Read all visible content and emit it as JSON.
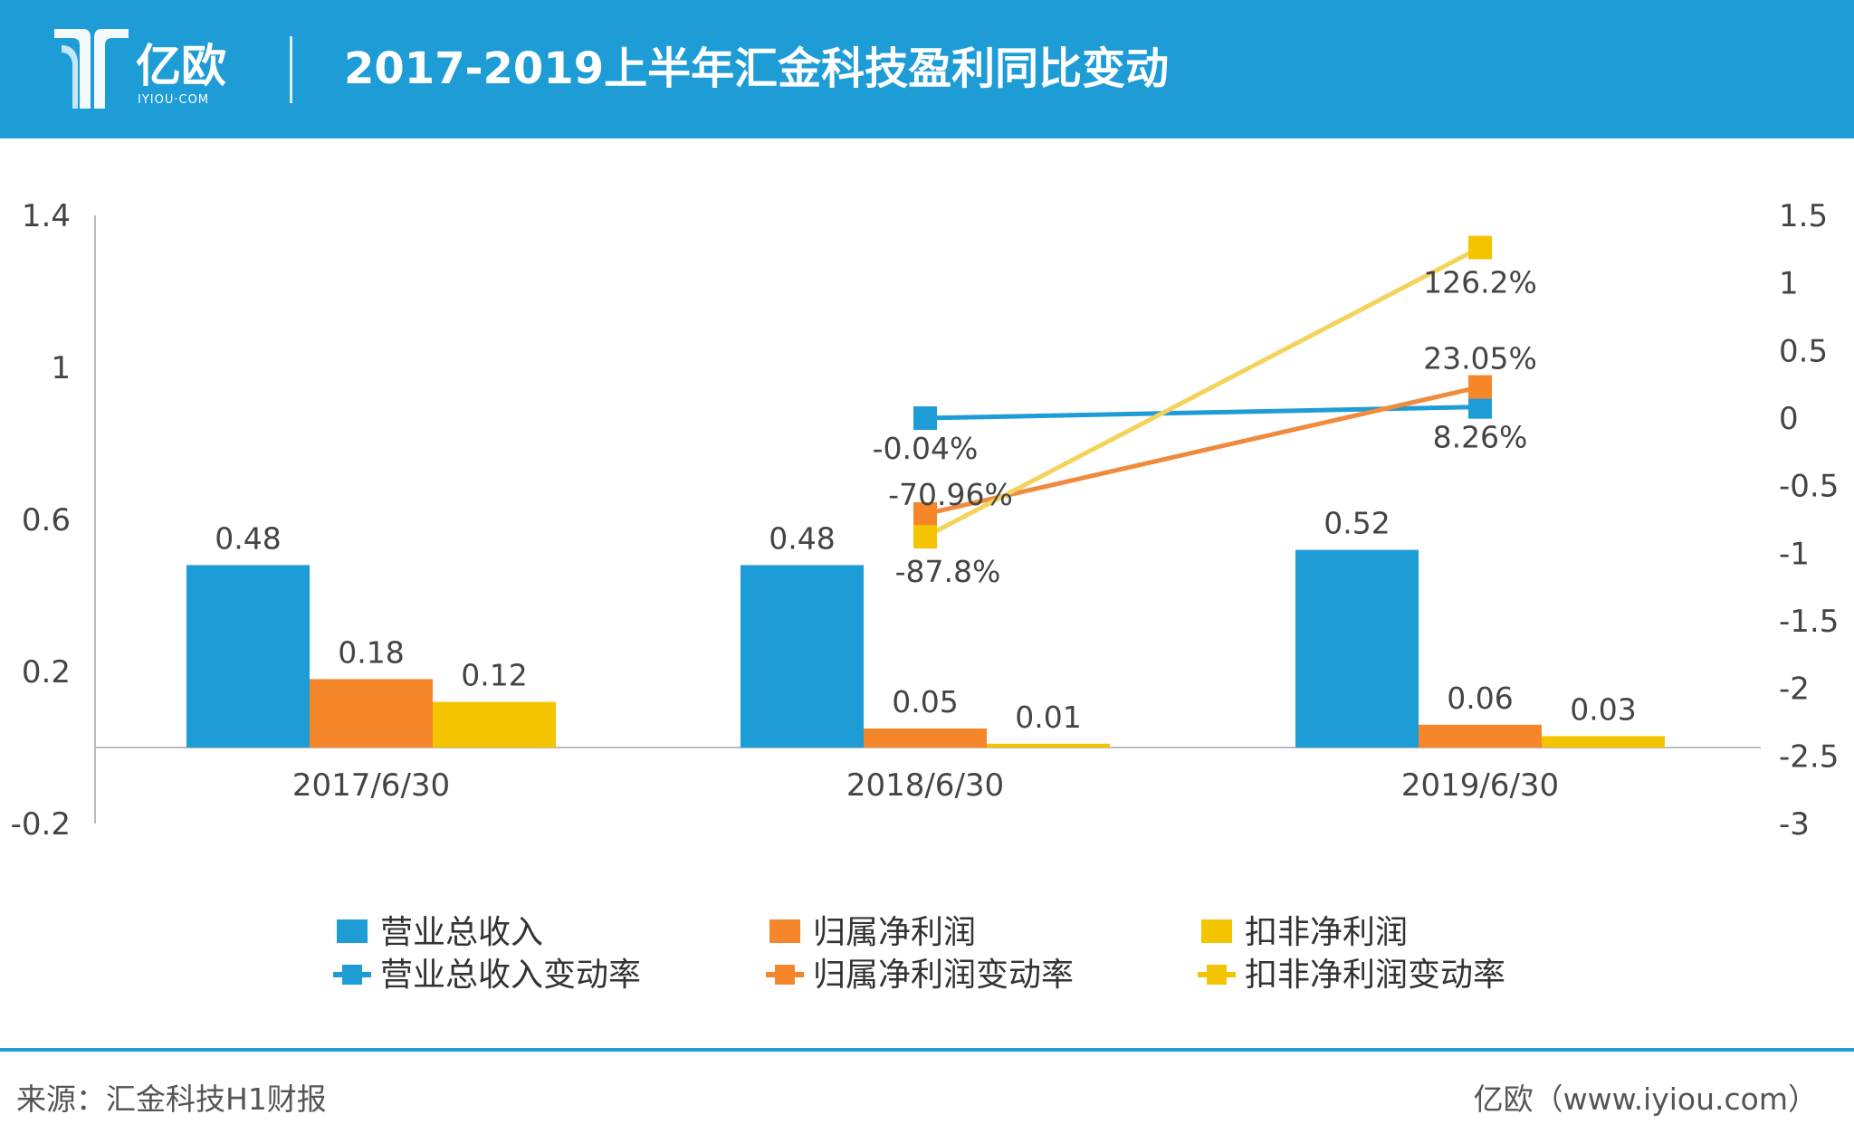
{
  "header": {
    "logo_text": "亿欧",
    "logo_subtext": "IYIOU·COM",
    "title": "2017-2019上半年汇金科技盈利同比变动",
    "bg_color": "#1e9cd6"
  },
  "chart_data": {
    "type": "bar",
    "title": "2017-2019上半年汇金科技盈利同比变动",
    "categories": [
      "2017/6/30",
      "2018/6/30",
      "2019/6/30"
    ],
    "y_left": {
      "min": -0.2,
      "max": 1.4,
      "ticks": [
        "1.4",
        "1",
        "0.6",
        "0.2",
        "-0.2"
      ]
    },
    "y_right": {
      "min": -3,
      "max": 1.5,
      "ticks": [
        "1.5",
        "1",
        "0.5",
        "0",
        "-0.5",
        "-1",
        "-1.5",
        "-2",
        "-2.5",
        "-3"
      ]
    },
    "bar_series": [
      {
        "name": "营业总收入",
        "color": "#1e9cd6",
        "values": [
          0.48,
          0.48,
          0.52
        ],
        "labels": [
          "0.48",
          "0.48",
          "0.52"
        ]
      },
      {
        "name": "归属净利润",
        "color": "#f5862a",
        "values": [
          0.18,
          0.05,
          0.06
        ],
        "labels": [
          "0.18",
          "0.05",
          "0.06"
        ]
      },
      {
        "name": "扣非净利润",
        "color": "#f5c400",
        "values": [
          0.12,
          0.01,
          0.03
        ],
        "labels": [
          "0.12",
          "0.01",
          "0.03"
        ]
      }
    ],
    "line_series": [
      {
        "name": "营业总收入变动率",
        "color": "#1e9cd6",
        "line_color": "#1e9cd6",
        "x_index": [
          1,
          2
        ],
        "values": [
          -0.0004,
          0.0826
        ],
        "labels": [
          "-0.04%",
          "8.26%"
        ]
      },
      {
        "name": "归属净利润变动率",
        "color": "#f5862a",
        "line_color": "#f08a3c",
        "x_index": [
          1,
          2
        ],
        "values": [
          -0.7096,
          0.2305
        ],
        "labels": [
          "-70.96%",
          "23.05%"
        ]
      },
      {
        "name": "扣非净利润变动率",
        "color": "#f5c400",
        "line_color": "#f4d35a",
        "x_index": [
          1,
          2
        ],
        "values": [
          -0.878,
          1.262
        ],
        "labels": [
          "-87.8%",
          "126.2%"
        ]
      }
    ],
    "legend": "bottom",
    "grid": false
  },
  "footer": {
    "source": "来源：汇金科技H1财报",
    "brand": "亿欧（www.iyiou.com）",
    "line_color": "#1e9cd6"
  }
}
